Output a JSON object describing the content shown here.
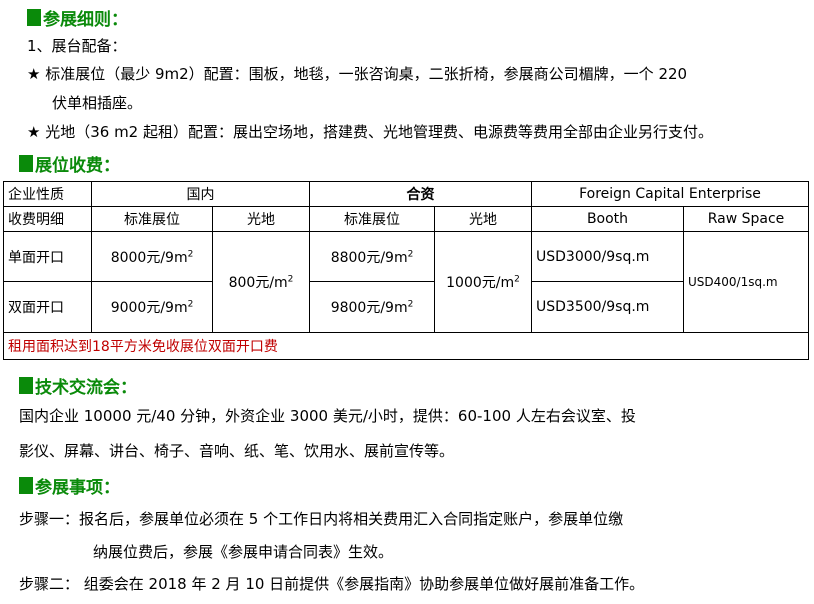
{
  "s1": {
    "title": "参展细则：",
    "item1": "1、展台配备：",
    "star1a": "★ 标准展位（最少 9m2）配置：围板，地毯，一张咨询桌，二张折椅，参展商公司楣牌，一个 220",
    "star1b": "伏单相插座。",
    "star2": "★ 光地（36 m2 起租）配置：展出空场地，搭建费、光地管理费、电源费等费用全部由企业另行支付。"
  },
  "s2": {
    "title": "展位收费：",
    "table": {
      "h1": [
        "企业性质",
        "国内",
        "合资",
        "Foreign Capital Enterprise"
      ],
      "h2": [
        "收费明细",
        "标准展位",
        "光地",
        "标准展位",
        "光地",
        "Booth",
        "Raw Space"
      ],
      "r1": {
        "label": "单面开口",
        "dom_std": "8000元/9m",
        "jv_std": "8800元/9m",
        "for_booth": "USD3000/9sq.m"
      },
      "r2": {
        "label": "双面开口",
        "dom_std": "9000元/9m",
        "jv_std": "9800元/9m",
        "for_booth": "USD3500/9sq.m"
      },
      "dom_raw": "800元/m",
      "jv_raw": "1000元/m",
      "for_raw": "USD400/1sq.m",
      "sup": "2",
      "note": "租用面积达到18平方米免收展位双面开口费"
    }
  },
  "s3": {
    "title": "技术交流会：",
    "l1": "国内企业 10000 元/40 分钟，外资企业 3000 美元/小时，提供：60-100 人左右会议室、投",
    "l2": "影仪、屏幕、讲台、椅子、音响、纸、笔、饮用水、展前宣传等。"
  },
  "s4": {
    "title": "参展事项：",
    "step1a": "步骤一：报名后，参展单位必须在 5 个工作日内将相关费用汇入合同指定账户，参展单位缴",
    "step1b": "纳展位费后，参展《参展申请合同表》生效。",
    "step2": "步骤二： 组委会在 2018 年 2 月 10 日前提供《参展指南》协助参展单位做好展前准备工作。"
  }
}
